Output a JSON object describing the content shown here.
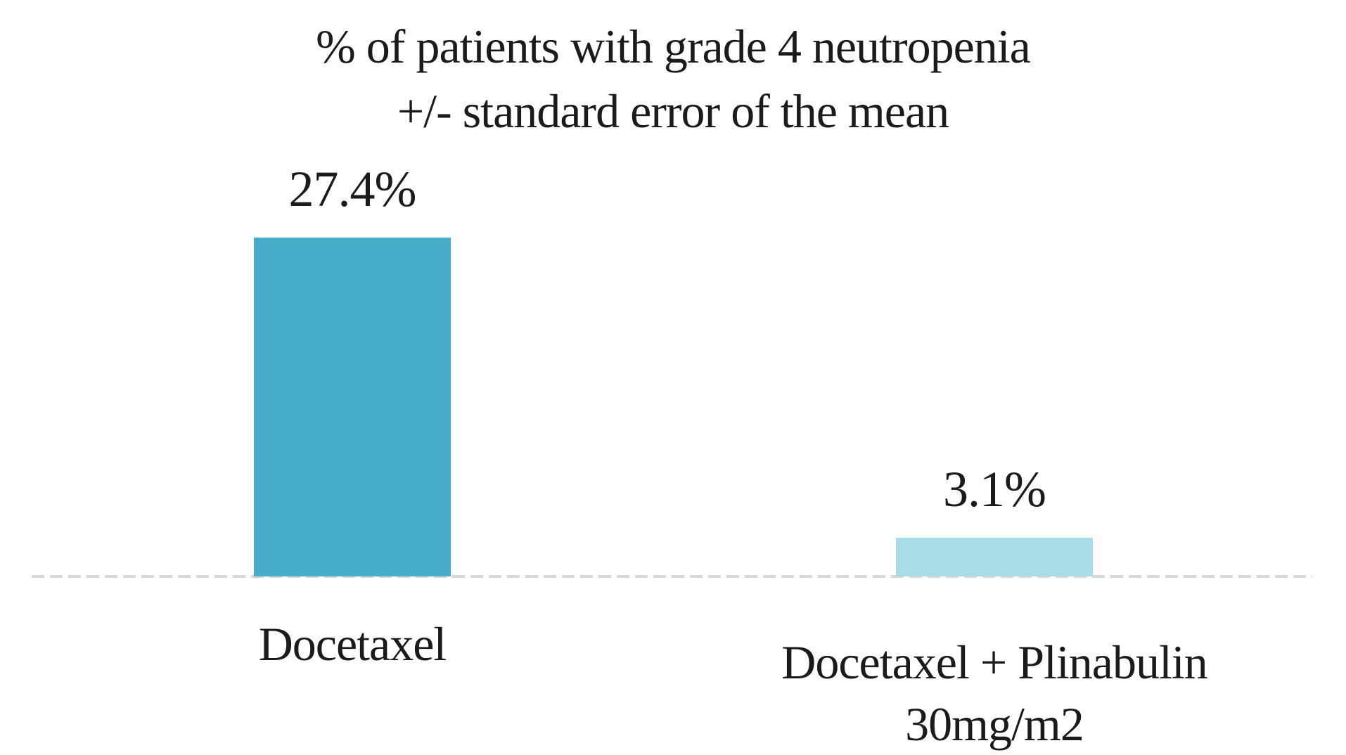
{
  "chart_data": {
    "type": "bar",
    "title": "% of patients with grade 4 neutropenia +/- standard error of the mean",
    "title_lines": [
      "% of patients with grade 4 neutropenia",
      "+/- standard error of the mean"
    ],
    "categories": [
      "Docetaxel",
      "Docetaxel + Plinabulin 30mg/m2"
    ],
    "values": [
      27.4,
      3.1
    ],
    "unit": "%",
    "ylim": [
      0,
      30
    ],
    "grid": false,
    "legend": false,
    "axis_baseline_color": "#d8d8d8",
    "bars": [
      {
        "category_lines": [
          "Docetaxel"
        ],
        "value": 27.4,
        "label": "27.4%",
        "color": "#47adcb"
      },
      {
        "category_lines": [
          "Docetaxel + Plinabulin",
          "30mg/m2"
        ],
        "value": 3.1,
        "label": "3.1%",
        "color": "#a9dce7"
      }
    ]
  }
}
